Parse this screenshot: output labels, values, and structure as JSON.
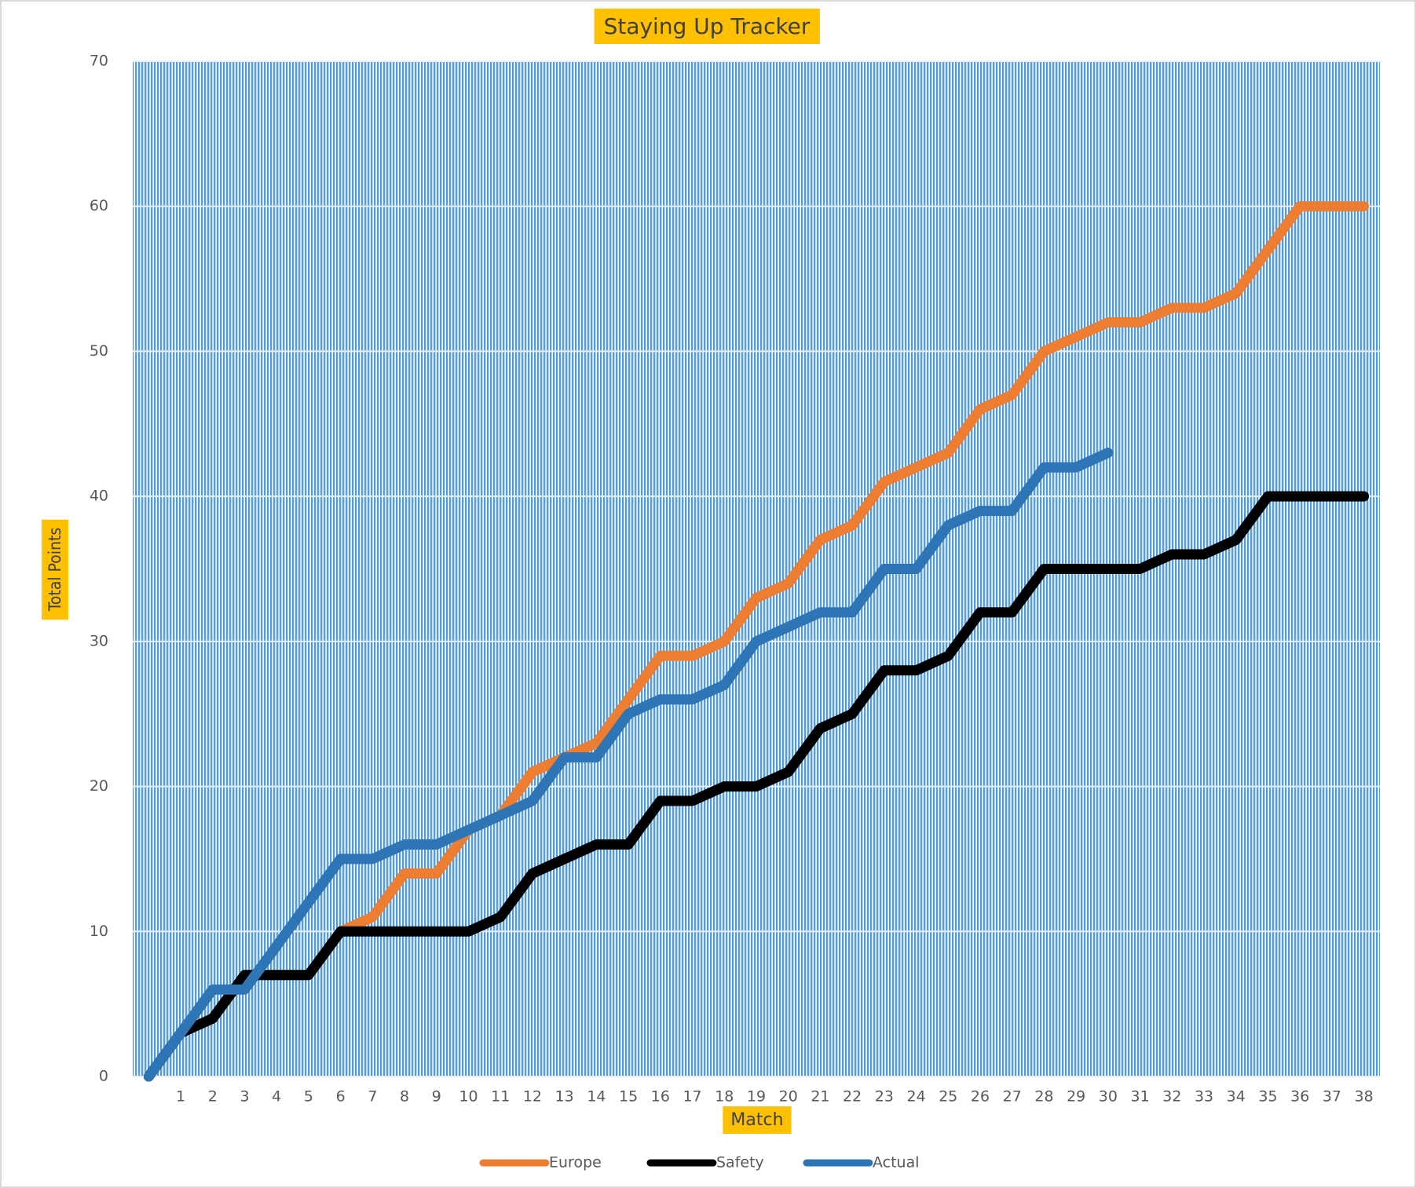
{
  "chart_data": {
    "type": "line",
    "title": "Staying Up Tracker",
    "x_label": "Match",
    "y_label": "Total Points",
    "categories": [
      null,
      "1",
      "2",
      "3",
      "4",
      "5",
      "6",
      "7",
      "8",
      "9",
      "10",
      "11",
      "12",
      "13",
      "14",
      "15",
      "16",
      "17",
      "18",
      "19",
      "20",
      "21",
      "22",
      "23",
      "24",
      "25",
      "26",
      "27",
      "28",
      "29",
      "30",
      "31",
      "32",
      "33",
      "34",
      "35",
      "36",
      "37",
      "38"
    ],
    "series": [
      {
        "name": "Europe",
        "color": "#ed7d31",
        "values": [
          0,
          3,
          4,
          7,
          7,
          7,
          10,
          11,
          14,
          14,
          17,
          18,
          21,
          22,
          23,
          26,
          29,
          29,
          30,
          33,
          34,
          37,
          38,
          41,
          42,
          43,
          46,
          47,
          50,
          51,
          52,
          52,
          53,
          53,
          54,
          57,
          60,
          60,
          60
        ]
      },
      {
        "name": "Safety",
        "color": "#000000",
        "values": [
          0,
          3,
          4,
          7,
          7,
          7,
          10,
          10,
          10,
          10,
          10,
          11,
          14,
          15,
          16,
          16,
          19,
          19,
          20,
          20,
          21,
          24,
          25,
          28,
          28,
          29,
          32,
          32,
          35,
          35,
          35,
          35,
          36,
          36,
          37,
          40,
          40,
          40,
          40
        ]
      },
      {
        "name": "Actual",
        "color": "#2e75b6",
        "values": [
          0,
          3,
          6,
          6,
          9,
          12,
          15,
          15,
          16,
          16,
          17,
          18,
          19,
          22,
          22,
          25,
          26,
          26,
          27,
          30,
          31,
          32,
          32,
          35,
          35,
          38,
          39,
          39,
          42,
          42,
          43,
          null,
          null,
          null,
          null,
          null,
          null,
          null,
          null
        ]
      }
    ],
    "ylim": [
      0,
      70
    ],
    "yticks": [
      0,
      10,
      20,
      30,
      40,
      50,
      60,
      70
    ],
    "grid": true,
    "legend": "bottom"
  }
}
